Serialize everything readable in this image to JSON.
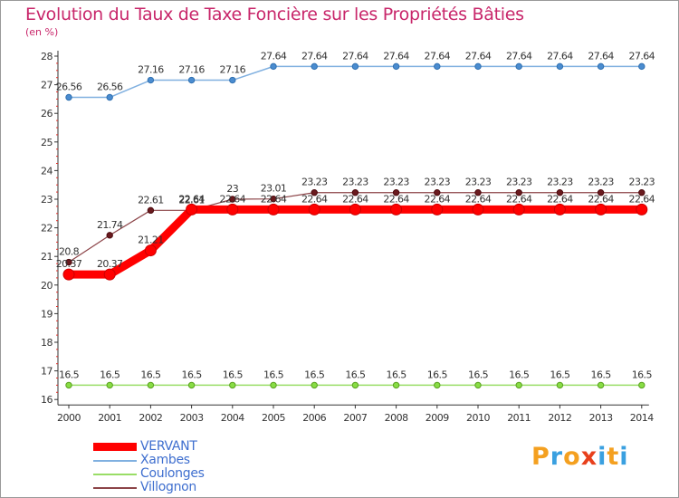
{
  "header": {
    "title": "Evolution du Taux de Taxe Foncière sur les Propriétés Bâties",
    "unit": "(en %)"
  },
  "logo": {
    "text": "Proxiti",
    "letters": [
      "P",
      "r",
      "o",
      "x",
      "i",
      "t",
      "i"
    ],
    "colors": [
      "#f4a020",
      "#3aa0e0",
      "#f4a020",
      "#e8401c",
      "#3aa0e0",
      "#f4a020",
      "#3aa0e0"
    ]
  },
  "chart_data": {
    "type": "line",
    "title": "Evolution du Taux de Taxe Foncière sur les Propriétés Bâties",
    "ylabel": "(en %)",
    "xlabel": "",
    "x": [
      "2000",
      "2001",
      "2002",
      "2003",
      "2004",
      "2005",
      "2006",
      "2007",
      "2008",
      "2009",
      "2010",
      "2011",
      "2012",
      "2013",
      "2014"
    ],
    "ylim": [
      16,
      28
    ],
    "yticks": [
      "16",
      "17",
      "18",
      "19",
      "20",
      "21",
      "22",
      "23",
      "24",
      "25",
      "26",
      "27",
      "28"
    ],
    "series": [
      {
        "name": "VERVANT",
        "color": "#ff0000",
        "values": [
          20.37,
          20.37,
          21.21,
          22.64,
          22.64,
          22.64,
          22.64,
          22.64,
          22.64,
          22.64,
          22.64,
          22.64,
          22.64,
          22.64,
          22.64
        ],
        "labels": [
          "20.37",
          "20.37",
          "21.21",
          "22.64",
          "22.64",
          "22.64",
          "22.64",
          "22.64",
          "22.64",
          "22.64",
          "22.64",
          "22.64",
          "22.64",
          "22.64",
          "22.64"
        ]
      },
      {
        "name": "Xambes",
        "color": "#80b0e0",
        "values": [
          26.56,
          26.56,
          27.16,
          27.16,
          27.16,
          27.64,
          27.64,
          27.64,
          27.64,
          27.64,
          27.64,
          27.64,
          27.64,
          27.64,
          27.64
        ],
        "labels": [
          "26.56",
          "26.56",
          "27.16",
          "27.16",
          "27.16",
          "27.64",
          "27.64",
          "27.64",
          "27.64",
          "27.64",
          "27.64",
          "27.64",
          "27.64",
          "27.64",
          "27.64"
        ]
      },
      {
        "name": "Coulonges",
        "color": "#99dd66",
        "values": [
          16.5,
          16.5,
          16.5,
          16.5,
          16.5,
          16.5,
          16.5,
          16.5,
          16.5,
          16.5,
          16.5,
          16.5,
          16.5,
          16.5,
          16.5
        ],
        "labels": [
          "16.5",
          "16.5",
          "16.5",
          "16.5",
          "16.5",
          "16.5",
          "16.5",
          "16.5",
          "16.5",
          "16.5",
          "16.5",
          "16.5",
          "16.5",
          "16.5",
          "16.5"
        ]
      },
      {
        "name": "Villognon",
        "color": "#8c4448",
        "values": [
          20.8,
          21.74,
          22.61,
          22.61,
          23,
          23.01,
          23.23,
          23.23,
          23.23,
          23.23,
          23.23,
          23.23,
          23.23,
          23.23,
          23.23
        ],
        "labels": [
          "20.8",
          "21.74",
          "22.61",
          "22.61",
          "23",
          "23.01",
          "23.23",
          "23.23",
          "23.23",
          "23.23",
          "23.23",
          "23.23",
          "23.23",
          "23.23",
          "23.23"
        ]
      }
    ],
    "grid": false,
    "legend_position": "bottom-left"
  }
}
